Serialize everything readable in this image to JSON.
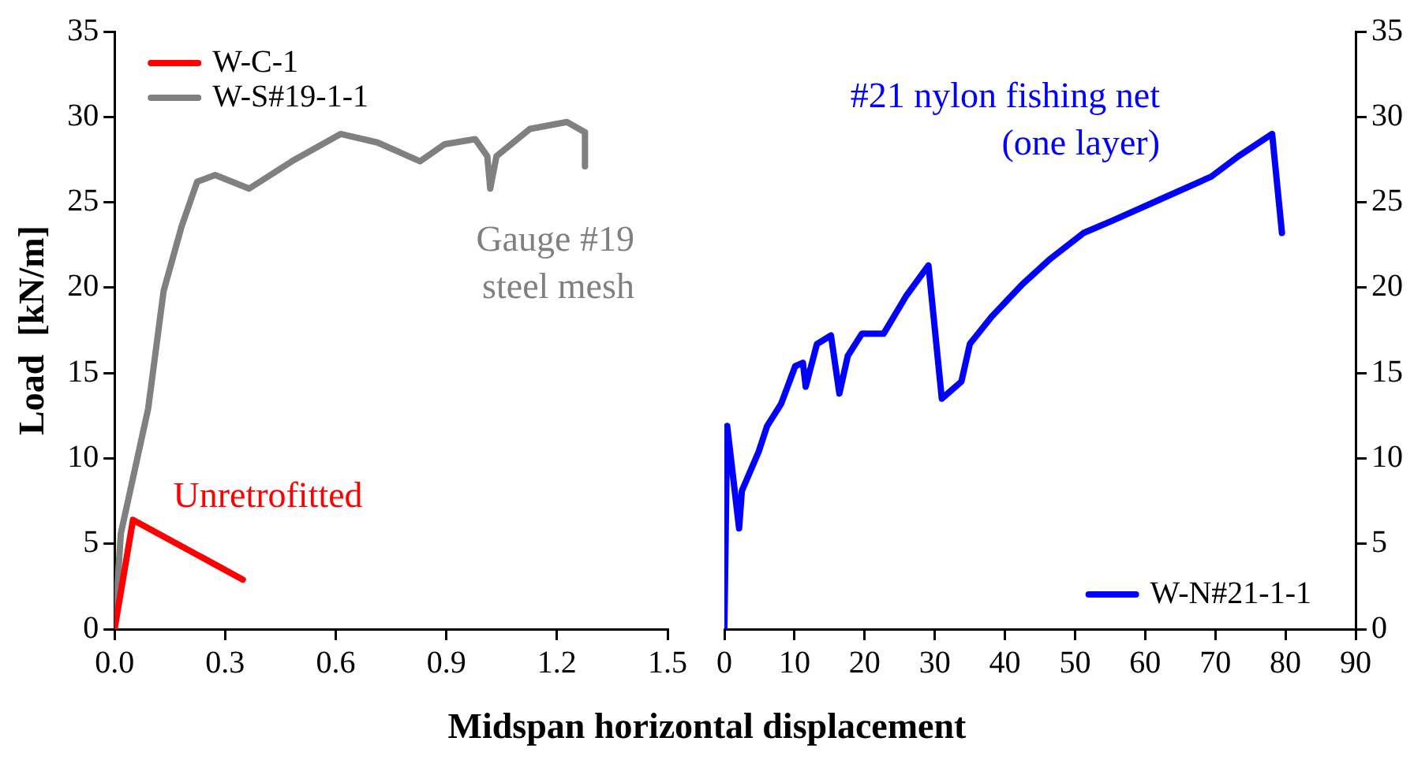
{
  "chart_data": [
    {
      "type": "line",
      "ylabel": "Load  [kN/m]",
      "xlabel": "Midspan horizontal displacement",
      "xlim": [
        0,
        1.5
      ],
      "xticks": [
        {
          "value": 0,
          "label": "0.0"
        },
        {
          "value": 0.3,
          "label": "0.3"
        },
        {
          "value": 0.6,
          "label": "0.6"
        },
        {
          "value": 0.9,
          "label": "0.9"
        },
        {
          "value": 1.2,
          "label": "1.2"
        },
        {
          "value": 1.5,
          "label": "1.5"
        }
      ],
      "ylim": [
        0,
        35
      ],
      "yticks": [
        0,
        5,
        10,
        15,
        20,
        25,
        30,
        35
      ],
      "legend": "top left",
      "grid": false,
      "marker": "none",
      "line_style": "solid",
      "annotations": [
        "Unretrofitted",
        "Gauge #19\nsteel mesh"
      ],
      "series": [
        {
          "name": "W-C-1",
          "color": "#ff0000",
          "x": [
            0,
            0.05,
            0.348
          ],
          "values": [
            0,
            6.4,
            2.9
          ]
        },
        {
          "name": "W-S#19-1-1",
          "color": "#808080",
          "x": [
            0,
            0.017,
            0.091,
            0.133,
            0.182,
            0.224,
            0.273,
            0.365,
            0.481,
            0.613,
            0.713,
            0.829,
            0.895,
            0.978,
            1.011,
            1.019,
            1.036,
            1.127,
            1.227,
            1.276,
            1.276
          ],
          "values": [
            0,
            5.6,
            12.9,
            19.8,
            23.6,
            26.2,
            26.6,
            25.8,
            27.4,
            29.0,
            28.5,
            27.4,
            28.4,
            28.7,
            27.7,
            25.8,
            27.7,
            29.3,
            29.7,
            29.1,
            27.1
          ]
        }
      ]
    },
    {
      "type": "line",
      "xlim": [
        0,
        90
      ],
      "xticks": [
        0,
        10,
        20,
        30,
        40,
        50,
        60,
        70,
        80,
        90
      ],
      "ylim": [
        0,
        35
      ],
      "yticks": [
        0,
        5,
        10,
        15,
        20,
        25,
        30,
        35
      ],
      "legend": "bottom right",
      "grid": false,
      "marker": "none",
      "line_style": "solid",
      "annotations": [
        "#21 nylon fishing net\n(one layer)"
      ],
      "series": [
        {
          "name": "W-N#21-1-1",
          "color": "#0000ff",
          "x": [
            0,
            0.4,
            2.1,
            2.5,
            4.9,
            6.1,
            8.1,
            10.1,
            11.2,
            11.6,
            13.2,
            15.2,
            16.4,
            17.6,
            19.6,
            22.7,
            25.9,
            29.1,
            31.0,
            33.8,
            35.0,
            38.1,
            42.5,
            46.5,
            51.2,
            55.2,
            62.3,
            69.4,
            73.3,
            78.1,
            79.5
          ],
          "values": [
            0,
            11.9,
            5.9,
            8.1,
            10.4,
            11.9,
            13.2,
            15.4,
            15.6,
            14.2,
            16.7,
            17.2,
            13.8,
            16.0,
            17.3,
            17.3,
            19.5,
            21.3,
            13.5,
            14.5,
            16.7,
            18.3,
            20.2,
            21.7,
            23.2,
            23.9,
            25.2,
            26.5,
            27.7,
            29.0,
            23.2
          ]
        }
      ]
    }
  ]
}
